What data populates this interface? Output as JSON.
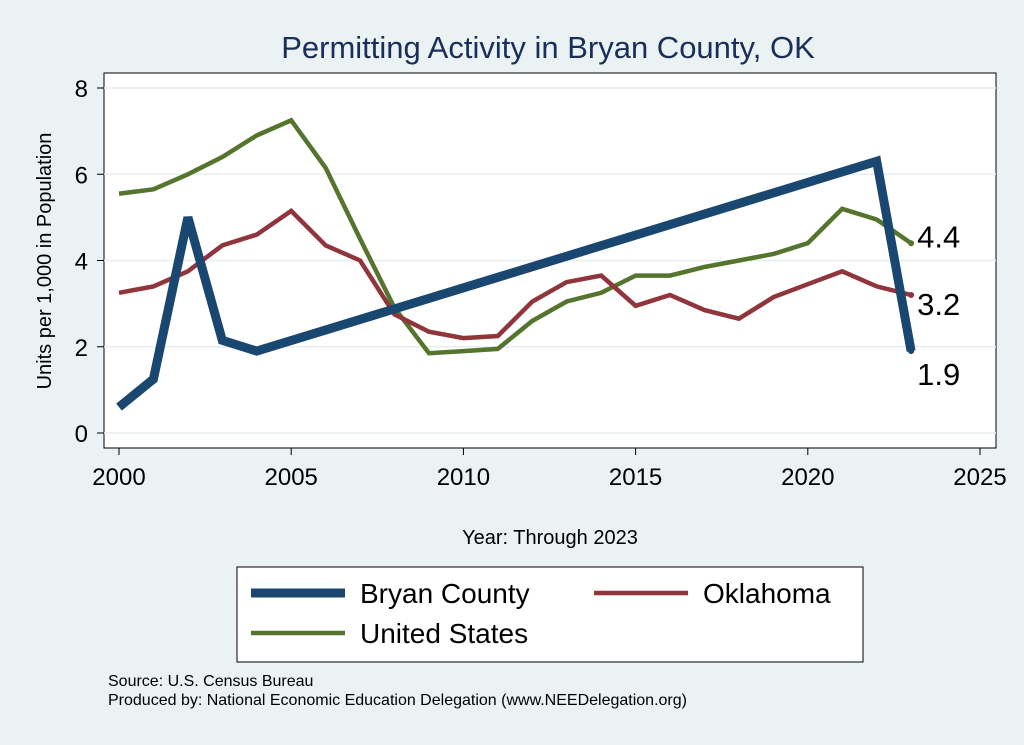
{
  "chart_data": {
    "type": "line",
    "title": "Permitting Activity in Bryan County, OK",
    "xlabel": "Year: Through 2023",
    "ylabel": "Units per 1,000 in Population",
    "xlim": [
      2000,
      2025
    ],
    "ylim": [
      0,
      8
    ],
    "xticks": [
      2000,
      2005,
      2010,
      2015,
      2020,
      2025
    ],
    "yticks": [
      0,
      2,
      4,
      6,
      8
    ],
    "grid": true,
    "legend_position": "bottom",
    "series": [
      {
        "name": "Bryan County",
        "color": "#1a476f",
        "x": [
          2000,
          2001,
          2002,
          2003,
          2004,
          2022,
          2023
        ],
        "values": [
          0.6,
          1.25,
          5.0,
          2.15,
          1.9,
          6.3,
          1.9
        ],
        "end_label": "1.9"
      },
      {
        "name": "Oklahoma",
        "color": "#90353b",
        "x": [
          2000,
          2001,
          2002,
          2003,
          2004,
          2005,
          2006,
          2007,
          2008,
          2009,
          2010,
          2011,
          2012,
          2013,
          2014,
          2015,
          2016,
          2017,
          2018,
          2019,
          2020,
          2021,
          2022,
          2023
        ],
        "values": [
          3.25,
          3.4,
          3.75,
          4.35,
          4.6,
          5.15,
          4.35,
          4.0,
          2.75,
          2.35,
          2.2,
          2.25,
          3.05,
          3.5,
          3.65,
          2.95,
          3.2,
          2.85,
          2.65,
          3.15,
          3.45,
          3.75,
          3.4,
          3.2
        ],
        "end_label": "3.2"
      },
      {
        "name": "United States",
        "color": "#55752f",
        "x": [
          2000,
          2001,
          2002,
          2003,
          2004,
          2005,
          2006,
          2007,
          2008,
          2009,
          2010,
          2011,
          2012,
          2013,
          2014,
          2015,
          2016,
          2017,
          2018,
          2019,
          2020,
          2021,
          2022,
          2023
        ],
        "values": [
          5.55,
          5.65,
          6.0,
          6.4,
          6.9,
          7.25,
          6.15,
          4.5,
          2.9,
          1.85,
          1.9,
          1.95,
          2.6,
          3.05,
          3.25,
          3.65,
          3.65,
          3.85,
          4.0,
          4.15,
          4.4,
          5.2,
          4.95,
          4.4
        ],
        "end_label": "4.4"
      }
    ],
    "legend_order": [
      "Bryan County",
      "Oklahoma",
      "United States"
    ]
  },
  "footer": {
    "source": "Source: U.S. Census Bureau",
    "produced_by": "Produced by: National Economic Education Delegation (www.NEEDelegation.org)"
  }
}
